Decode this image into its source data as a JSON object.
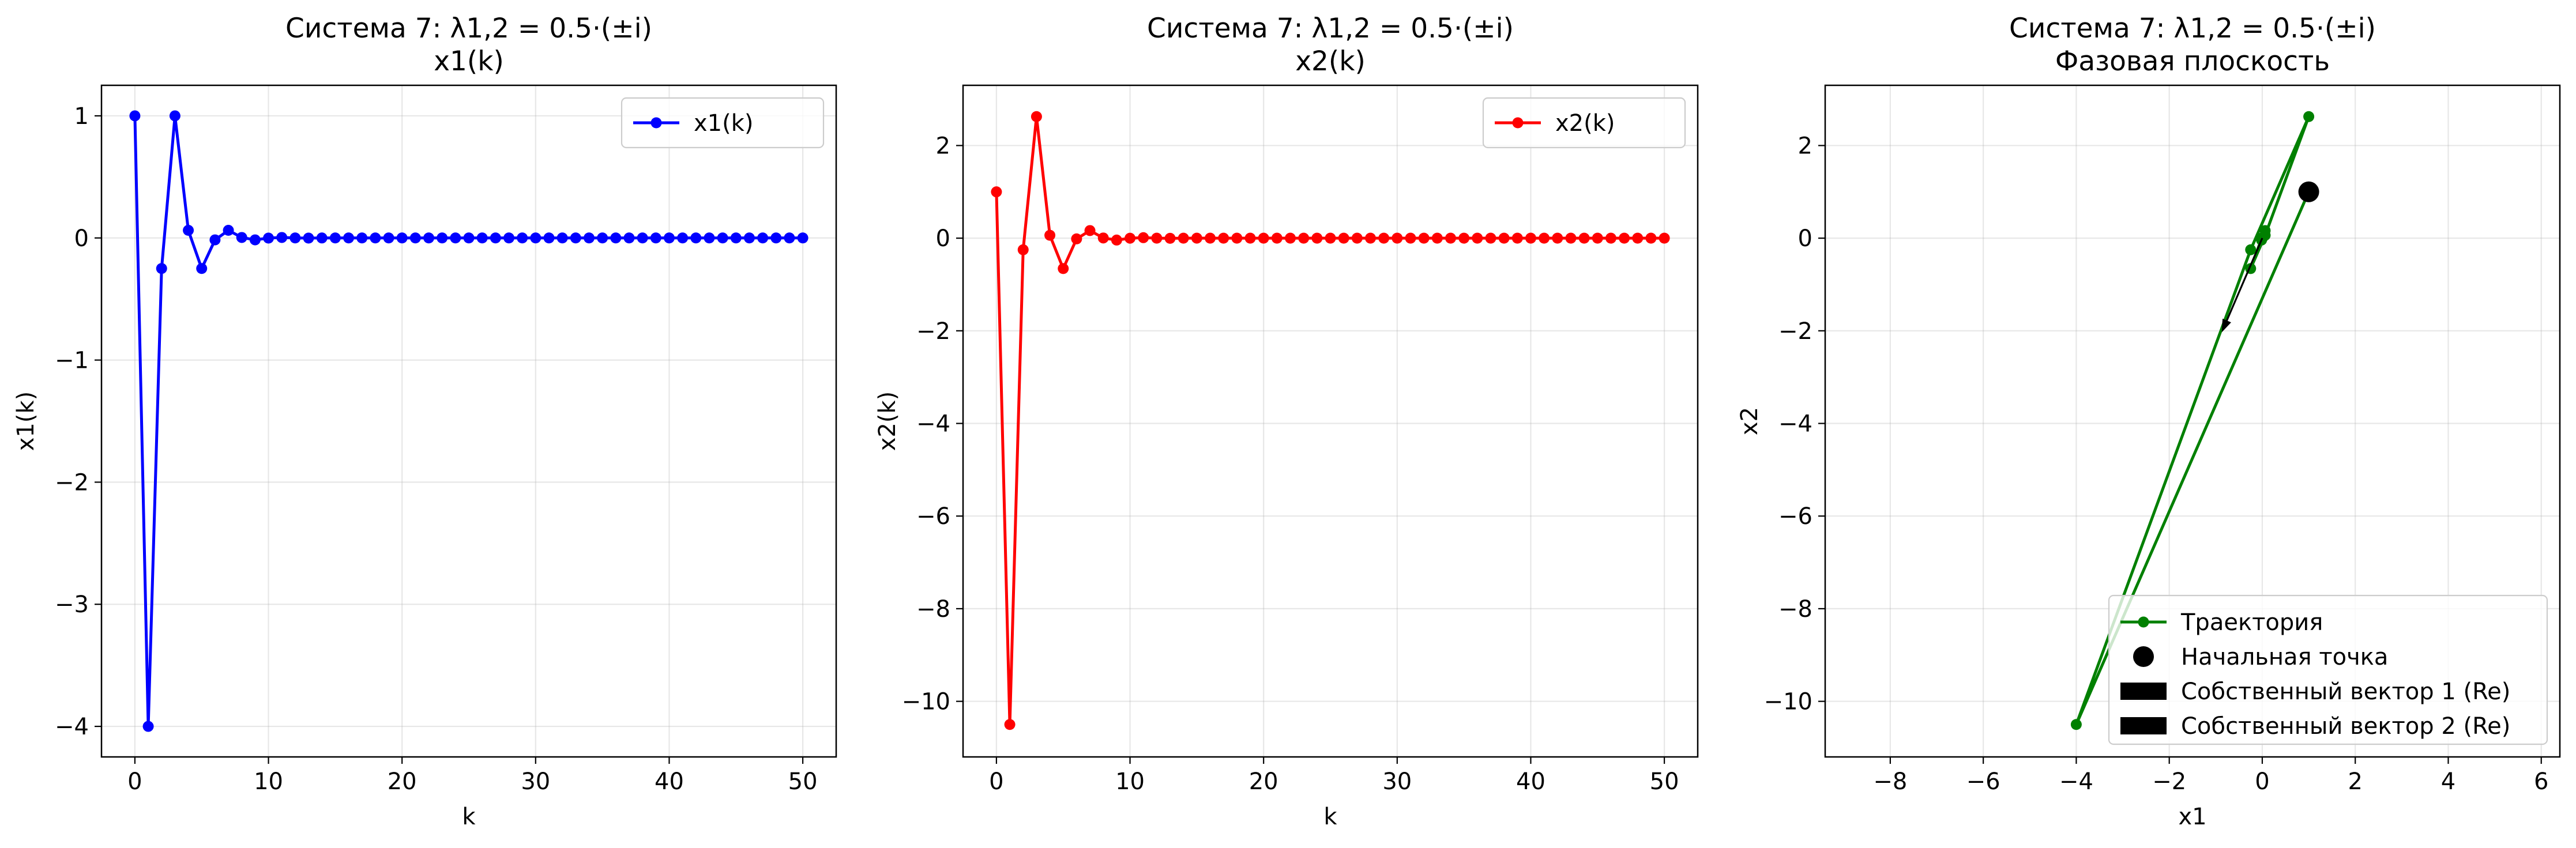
{
  "chart_data": [
    {
      "type": "line",
      "title": "Система 7: λ1,2 = 0.5·(±i)",
      "subtitle": "x1(k)",
      "xlabel": "k",
      "ylabel": "x1(k)",
      "xlim": [
        -2.5,
        52.5
      ],
      "ylim": [
        -4.25,
        1.25
      ],
      "xticks": [
        0,
        10,
        20,
        30,
        40,
        50
      ],
      "yticks": [
        -4,
        -3,
        -2,
        -1,
        0,
        1
      ],
      "grid": true,
      "legend_position": "upper right",
      "series": [
        {
          "name": "x1(k)",
          "color": "#0000ff",
          "marker": "circle",
          "x": [
            0,
            1,
            2,
            3,
            4,
            5,
            6,
            7,
            8,
            9,
            10,
            11,
            12,
            13,
            14,
            15,
            16,
            17,
            18,
            19,
            20,
            21,
            22,
            23,
            24,
            25,
            26,
            27,
            28,
            29,
            30,
            31,
            32,
            33,
            34,
            35,
            36,
            37,
            38,
            39,
            40,
            41,
            42,
            43,
            44,
            45,
            46,
            47,
            48,
            49,
            50
          ],
          "y": [
            1,
            -4,
            -0.25,
            1,
            0.0625,
            -0.25,
            -0.0156,
            0.0625,
            0.0039,
            -0.0156,
            -0.001,
            0.0039,
            0.0002,
            -0.001,
            -0.0001,
            0.0002,
            0,
            0,
            0,
            0,
            0,
            0,
            0,
            0,
            0,
            0,
            0,
            0,
            0,
            0,
            0,
            0,
            0,
            0,
            0,
            0,
            0,
            0,
            0,
            0,
            0,
            0,
            0,
            0,
            0,
            0,
            0,
            0,
            0,
            0,
            0
          ]
        }
      ]
    },
    {
      "type": "line",
      "title": "Система 7: λ1,2 = 0.5·(±i)",
      "subtitle": "x2(k)",
      "xlabel": "k",
      "ylabel": "x2(k)",
      "xlim": [
        -2.5,
        52.5
      ],
      "ylim": [
        -11.2,
        3.3
      ],
      "xticks": [
        0,
        10,
        20,
        30,
        40,
        50
      ],
      "yticks": [
        -10,
        -8,
        -6,
        -4,
        -2,
        0,
        2
      ],
      "grid": true,
      "legend_position": "upper right",
      "series": [
        {
          "name": "x2(k)",
          "color": "#ff0000",
          "marker": "circle",
          "x": [
            0,
            1,
            2,
            3,
            4,
            5,
            6,
            7,
            8,
            9,
            10,
            11,
            12,
            13,
            14,
            15,
            16,
            17,
            18,
            19,
            20,
            21,
            22,
            23,
            24,
            25,
            26,
            27,
            28,
            29,
            30,
            31,
            32,
            33,
            34,
            35,
            36,
            37,
            38,
            39,
            40,
            41,
            42,
            43,
            44,
            45,
            46,
            47,
            48,
            49,
            50
          ],
          "y": [
            1,
            -10.5,
            -0.25,
            2.625,
            0.0625,
            -0.6563,
            -0.0156,
            0.1641,
            0.0039,
            -0.041,
            -0.001,
            0.0103,
            0.0002,
            -0.0026,
            -0.0001,
            0.0006,
            0,
            -0.0002,
            0,
            0,
            0,
            0,
            0,
            0,
            0,
            0,
            0,
            0,
            0,
            0,
            0,
            0,
            0,
            0,
            0,
            0,
            0,
            0,
            0,
            0,
            0,
            0,
            0,
            0,
            0,
            0,
            0,
            0,
            0,
            0,
            0
          ]
        }
      ]
    },
    {
      "type": "line",
      "title": "Система 7: λ1,2 = 0.5·(±i)",
      "subtitle": "Фазовая плоскость",
      "xlabel": "x1",
      "ylabel": "x2",
      "xlim": [
        -9.4,
        6.4
      ],
      "ylim": [
        -11.2,
        3.3
      ],
      "xticks": [
        -8,
        -6,
        -4,
        -2,
        0,
        2,
        4,
        6
      ],
      "yticks": [
        -10,
        -8,
        -6,
        -4,
        -2,
        0,
        2
      ],
      "grid": true,
      "legend_position": "lower right",
      "series": [
        {
          "name": "Траектория",
          "color": "#008000",
          "marker": "circle",
          "x": [
            1,
            -4,
            -0.25,
            1,
            0.0625,
            -0.25,
            -0.0156,
            0.0625,
            0.0039,
            -0.0156,
            -0.001,
            0.0039,
            0.0002,
            -0.001
          ],
          "y": [
            1,
            -10.5,
            -0.25,
            2.625,
            0.0625,
            -0.6563,
            -0.0156,
            0.1641,
            0.0039,
            -0.041,
            -0.001,
            0.0103,
            0.0002,
            -0.0026
          ]
        }
      ],
      "initial_point": {
        "name": "Начальная точка",
        "x": 1,
        "y": 1,
        "color": "#000000"
      },
      "vectors": [
        {
          "name": "Собственный вектор 1 (Re)",
          "color": "#000000",
          "from": [
            0,
            0
          ],
          "to": [
            -0.87,
            -2.03
          ]
        },
        {
          "name": "Собственный вектор 2 (Re)",
          "color": "#000000",
          "from": [
            0,
            0
          ],
          "to": [
            -0.87,
            -2.03
          ]
        }
      ]
    }
  ]
}
